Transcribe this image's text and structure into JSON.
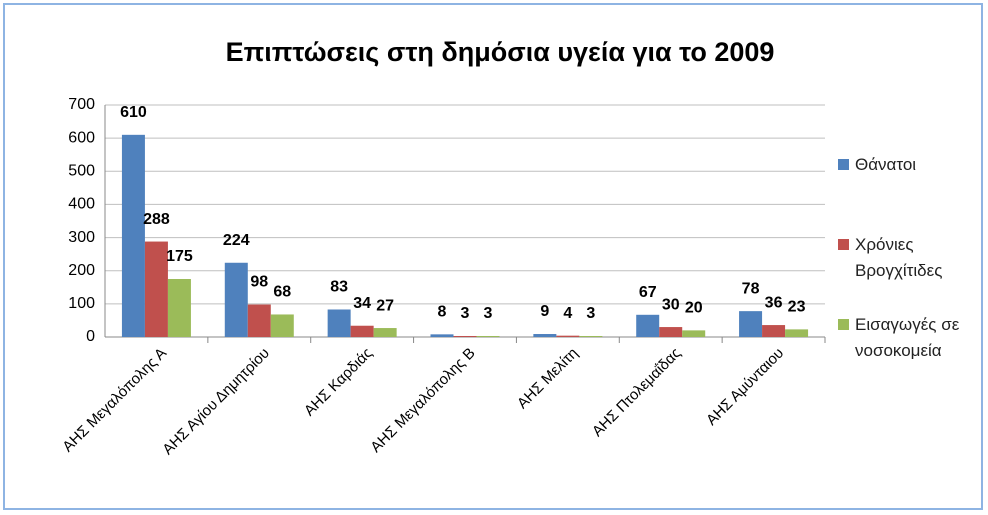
{
  "chart_data": {
    "type": "bar",
    "title": "Επιπτώσεις στη δημόσια υγεία για το 2009",
    "categories": [
      "ΑΗΣ Μεγαλόπολης Α",
      "ΑΗΣ Αγίου Δημητρίου",
      "ΑΗΣ Καρδιάς",
      "ΑΗΣ Μεγαλόπολης Β",
      "ΑΗΣ Μελίτη",
      "ΑΗΣ Πτολεμαΐδας",
      "ΑΗΣ Αμύνταιου"
    ],
    "series": [
      {
        "name": "Θάνατοι",
        "color": "#4f81bd",
        "values": [
          610,
          224,
          83,
          8,
          9,
          67,
          78
        ]
      },
      {
        "name": "Χρόνιες Βρογχίτιδες",
        "color": "#c0504d",
        "values": [
          288,
          98,
          34,
          3,
          4,
          30,
          36
        ]
      },
      {
        "name": "Εισαγωγές σε νοσοκομεία",
        "color": "#9bbb59",
        "values": [
          175,
          68,
          27,
          3,
          3,
          20,
          23
        ]
      }
    ],
    "ylim": [
      0,
      700
    ],
    "yticks": [
      0,
      100,
      200,
      300,
      400,
      500,
      600,
      700
    ],
    "grid": true,
    "legend": "right"
  }
}
